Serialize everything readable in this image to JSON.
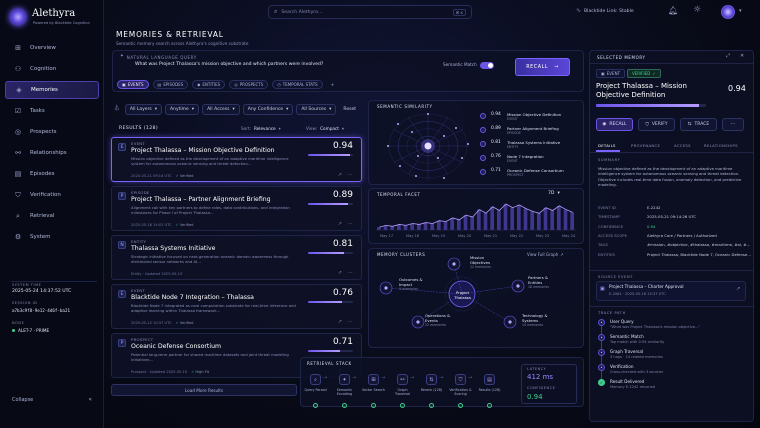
{
  "app": {
    "name": "Alethyra",
    "tagline": "Powered by Blacktide Cognition"
  },
  "search": {
    "placeholder": "Search Alethyra...",
    "shortcut": "⌘ K"
  },
  "header": {
    "link_status": "Blacktide Link: Stable"
  },
  "sidebar": {
    "items": [
      {
        "label": "Overview",
        "icon": "grid-icon"
      },
      {
        "label": "Cognition",
        "icon": "brain-icon"
      },
      {
        "label": "Memories",
        "icon": "layers-icon",
        "active": true
      },
      {
        "label": "Tasks",
        "icon": "checklist-icon"
      },
      {
        "label": "Prospects",
        "icon": "target-icon"
      },
      {
        "label": "Relationships",
        "icon": "network-icon"
      },
      {
        "label": "Episodes",
        "icon": "film-icon"
      },
      {
        "label": "Verification",
        "icon": "shield-icon"
      },
      {
        "label": "Retrieval",
        "icon": "search-icon"
      },
      {
        "label": "System",
        "icon": "gear-icon"
      }
    ],
    "system_time_label": "SYSTEM TIME",
    "system_time": "2025-05-24 14:37:52 UTC",
    "session_label": "SESSION ID",
    "session_id": "a7b3c9f8-9e12-4d6f-ba21",
    "node_label": "NODE",
    "node": "ALET-7 · PRIME",
    "collapse": "Collapse"
  },
  "page": {
    "title": "MEMORIES & RETRIEVAL",
    "subtitle": "Semantic memory search across Alethyra's cognitive substrate"
  },
  "query": {
    "label": "NATURAL LANGUAGE QUERY",
    "text": "What was Project Thalassa's mission objective and which partners were involved?",
    "semantic_label": "Semantic Match",
    "recall": "RECALL"
  },
  "types": [
    "EVENTS",
    "EPISODES",
    "ENTITIES",
    "PROSPECTS",
    "TEMPORAL STATS"
  ],
  "filters": {
    "layers": "All Layers",
    "time": "Anytime",
    "access": "All Access",
    "confidence": "Any Confidence",
    "sources": "All Sources",
    "reset": "Reset"
  },
  "results": {
    "count_label": "RESULTS (128)",
    "sort_label": "Sort:",
    "sort": "Relevance",
    "view_label": "View:",
    "view": "Compact",
    "load_more": "Load More Results",
    "items": [
      {
        "type": "EVENT",
        "icon": "E",
        "title": "Project Thalassa – Mission Objective Definition",
        "desc": "Mission objective defined as the development of an adaptive maritime intelligence system for autonomous oceanic sensing and threat detection...",
        "date": "2025-05-21 09:14 UTC",
        "status": "Verified",
        "score": "0.94",
        "pct": 0.94
      },
      {
        "type": "EPISODE",
        "icon": "P",
        "title": "Project Thalassa – Partner Alignment Briefing",
        "desc": "Alignment call with key partners to define roles, data contributions, and integration milestones for Phase I of Project Thalassa...",
        "date": "2025-05-18 14:02 UTC",
        "status": "Verified",
        "score": "0.89",
        "pct": 0.89
      },
      {
        "type": "ENTITY",
        "icon": "N",
        "title": "Thalassa Systems Initiative",
        "desc": "Strategic initiative focused on next-generation oceanic domain awareness through distributed sensor networks and AI...",
        "date": "Entity · Updated 2025-05-19",
        "status": "",
        "score": "0.81",
        "pct": 0.81
      },
      {
        "type": "EVENT",
        "icon": "E",
        "title": "Blacktide Node 7 Integration – Thalassa",
        "desc": "Blacktide Node 7 integrated as core computation substrate for real-time inference and adaptive learning within Thalassa framework...",
        "date": "2025-05-12 10:37 UTC",
        "status": "Verified",
        "score": "0.76",
        "pct": 0.76
      },
      {
        "type": "PROSPECT",
        "icon": "P",
        "title": "Oceanic Defense Consortium",
        "desc": "Potential long-term partner for shared maritime datasets and joint threat modeling initiatives...",
        "date": "Prospect · Updated 2025-05-10",
        "status": "High Fit",
        "score": "0.71",
        "pct": 0.71
      }
    ]
  },
  "similarity": {
    "title": "SEMANTIC SIMILARITY",
    "items": [
      {
        "score": "0.94",
        "name": "Mission Objective Definition",
        "kind": "EVENT"
      },
      {
        "score": "0.89",
        "name": "Partner Alignment Briefing",
        "kind": "EPISODE"
      },
      {
        "score": "0.81",
        "name": "Thalassa Systems Initiative",
        "kind": "ENTITY"
      },
      {
        "score": "0.76",
        "name": "Node 7 Integration",
        "kind": "EVENT"
      },
      {
        "score": "0.71",
        "name": "Oceanic Defense Consortium",
        "kind": "PROSPECT"
      }
    ]
  },
  "temporal": {
    "title": "TEMPORAL FACET",
    "range": "7D",
    "ticks": [
      "May 17",
      "May 18",
      "May 19",
      "May 20",
      "May 21",
      "May 22",
      "May 23",
      "May 24"
    ],
    "values": [
      3,
      5,
      4,
      6,
      5,
      7,
      6,
      8,
      7,
      10,
      9,
      13,
      11,
      16,
      14,
      22,
      18,
      25,
      21,
      28,
      24,
      27,
      23,
      20,
      18,
      24,
      21,
      26,
      22,
      19
    ]
  },
  "clusters": {
    "title": "MEMORY CLUSTERS",
    "view_all": "View Full Graph",
    "center": "Project Thalassa",
    "nodes": [
      {
        "name": "Mission Objectives",
        "count": "12 memories"
      },
      {
        "name": "Outcomes & Impact",
        "count": "9 memories"
      },
      {
        "name": "Partners & Entities",
        "count": "18 memories"
      },
      {
        "name": "Operations & Events",
        "count": "22 memories"
      },
      {
        "name": "Technology & Systems",
        "count": "14 memories"
      }
    ]
  },
  "retrieval": {
    "title": "RETRIEVAL STACK",
    "steps": [
      "Query Parsed",
      "Semantic Encoding",
      "Vector Search",
      "Graph Traversal",
      "Rerank (128)",
      "Verification & Scoring",
      "Results (128)"
    ],
    "latency_label": "LATENCY",
    "latency": "412 ms",
    "confidence_label": "CONFIDENCE",
    "confidence": "0.94"
  },
  "detail": {
    "panel_title": "SELECTED MEMORY",
    "kind": "EVENT",
    "verified": "VERIFIED",
    "title": "Project Thalassa – Mission Objective Definition",
    "score": "0.94",
    "pct": 0.94,
    "actions": [
      "RECALL",
      "VERIFY",
      "TRACE"
    ],
    "tabs": [
      "DETAILS",
      "PROVENANCE",
      "ACCESS",
      "RELATIONSHIPS"
    ],
    "summary_label": "SUMMARY",
    "summary": "Mission objective defined as the development of an adaptive maritime intelligence system for autonomous oceanic sensing and threat detection. Objective includes real-time data fusion, anomaly detection, and predictive modeling.",
    "fields": [
      {
        "k": "Event ID",
        "v": "E-2242"
      },
      {
        "k": "Timestamp",
        "v": "2025-05-21 09:14:26 UTC"
      },
      {
        "k": "Confidence",
        "v": "0.94"
      },
      {
        "k": "Access Scope",
        "v": "Alethyra Core / Partners / Authorized"
      },
      {
        "k": "Tags",
        "v": "#mission, #objective, #thalassa, #maritime, #ai, #strategy"
      },
      {
        "k": "Entities",
        "v": "Project Thalassa, Blacktide Node 7, Oceanic Defense Consortium"
      }
    ],
    "source_label": "SOURCE EVENT",
    "source_title": "Project Thalassa – Charter Approval",
    "source_meta": "E-2061 · 2025-05-16 15:37 UTC",
    "trace_label": "TRACE PATH",
    "trace": [
      {
        "t": "User Query",
        "s": "\"What was Project Thalassa's mission objective...\""
      },
      {
        "t": "Semantic Match",
        "s": "Top match with 0.94 similarity"
      },
      {
        "t": "Graph Traversal",
        "s": "3 hops · 14 related memories"
      },
      {
        "t": "Verification",
        "s": "Cross-checked with 3 sources"
      },
      {
        "t": "Result Delivered",
        "s": "Memory E-2242 returned"
      }
    ]
  },
  "colors": {
    "accent": "#7a63ff",
    "good": "#3ecf8e",
    "bg": "#070a16"
  }
}
